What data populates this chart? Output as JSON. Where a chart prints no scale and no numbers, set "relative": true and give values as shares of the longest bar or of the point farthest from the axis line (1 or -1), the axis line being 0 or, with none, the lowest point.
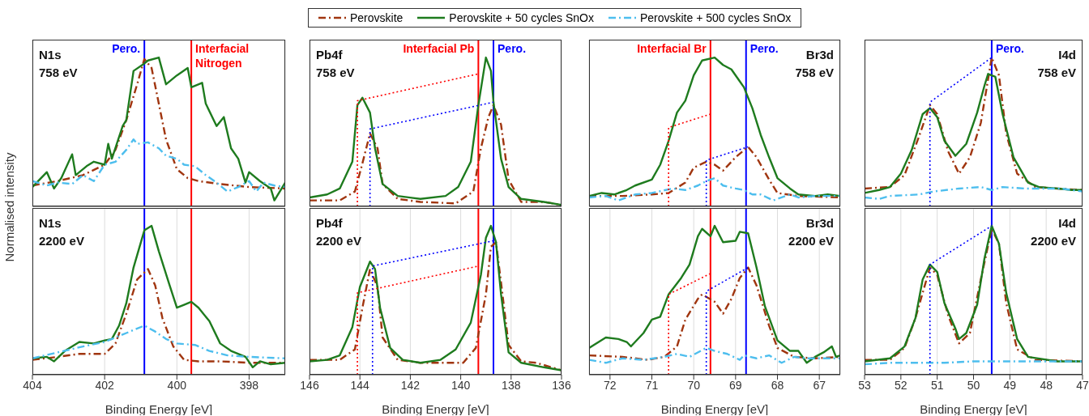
{
  "chart_data": [
    {
      "type": "line",
      "title": "N1s",
      "subtitle": "758 eV",
      "ylabel": "Normalised intensity",
      "relative": true,
      "grid": "x",
      "legend": "top",
      "tick_labels": false,
      "xlim": [
        404,
        397
      ],
      "xticks": [
        404,
        402,
        400,
        398
      ],
      "ref_lines": [
        {
          "axis": "x",
          "value": 400.9,
          "label": "Pero.",
          "color": "#0000ff"
        },
        {
          "axis": "x",
          "value": 399.6,
          "label": "Interfacial Nitrogen",
          "color": "#ff0000"
        }
      ],
      "series": [
        {
          "name": "Perovskite",
          "color": "#a0350f",
          "line_style": "dashed",
          "x": [
            404.0,
            403.3,
            402.6,
            402.0,
            401.7,
            401.4,
            401.1,
            400.9,
            400.7,
            400.5,
            400.3,
            400.0,
            399.7,
            399.4,
            398.8,
            398.0,
            397.0
          ],
          "values": [
            0.14,
            0.17,
            0.21,
            0.28,
            0.38,
            0.58,
            0.82,
            0.99,
            0.93,
            0.69,
            0.45,
            0.25,
            0.19,
            0.17,
            0.15,
            0.13,
            0.12
          ]
        },
        {
          "name": "Perovskite + 50 cycles SnOx",
          "color": "#1e7b1e",
          "line_style": "solid",
          "x": [
            404.0,
            403.6,
            403.4,
            403.2,
            402.9,
            402.8,
            402.5,
            402.3,
            402.0,
            401.9,
            401.8,
            401.5,
            401.4,
            401.2,
            400.9,
            400.8,
            400.5,
            400.3,
            400.0,
            399.7,
            399.6,
            399.3,
            399.2,
            398.9,
            398.7,
            398.5,
            398.3,
            398.1,
            398.0,
            397.7,
            397.4,
            397.3,
            397.0
          ],
          "values": [
            0.13,
            0.23,
            0.12,
            0.19,
            0.35,
            0.21,
            0.27,
            0.3,
            0.28,
            0.42,
            0.32,
            0.54,
            0.58,
            0.91,
            0.96,
            0.98,
            1.0,
            0.82,
            0.88,
            0.93,
            0.8,
            0.83,
            0.69,
            0.54,
            0.6,
            0.39,
            0.32,
            0.16,
            0.23,
            0.17,
            0.12,
            0.04,
            0.16
          ]
        },
        {
          "name": "Perovskite + 500 cycles SnOx",
          "color": "#4dbeee",
          "line_style": "dashed",
          "x": [
            404.0,
            403.6,
            403.3,
            402.9,
            402.6,
            402.3,
            402.0,
            401.7,
            401.4,
            401.2,
            401.1,
            400.8,
            400.5,
            400.3,
            400.0,
            399.8,
            399.5,
            399.2,
            398.9,
            398.6,
            398.3,
            398.0,
            397.8,
            397.6,
            397.3,
            397.0
          ],
          "values": [
            0.17,
            0.14,
            0.16,
            0.15,
            0.21,
            0.17,
            0.28,
            0.3,
            0.38,
            0.45,
            0.42,
            0.43,
            0.39,
            0.34,
            0.32,
            0.28,
            0.27,
            0.21,
            0.16,
            0.1,
            0.13,
            0.17,
            0.1,
            0.16,
            0.14,
            0.13
          ]
        }
      ]
    },
    {
      "type": "line",
      "title": "Pb4f",
      "subtitle": "758 eV",
      "relative": true,
      "grid": "x",
      "tick_labels": false,
      "xlim": [
        146,
        136
      ],
      "xticks": [
        146,
        144,
        142,
        140,
        138,
        136
      ],
      "ref_lines": [
        {
          "axis": "x",
          "value": 139.3,
          "label": "Interfacial Pb",
          "color": "#ff0000"
        },
        {
          "axis": "x",
          "value": 138.7,
          "label": "Pero.",
          "color": "#0000ff"
        }
      ],
      "series": [
        {
          "color": "#a0350f",
          "line_style": "dashed",
          "x": [
            146.0,
            144.8,
            144.2,
            143.9,
            143.6,
            143.3,
            143.1,
            142.5,
            141.6,
            140.2,
            139.5,
            139.2,
            138.9,
            138.7,
            138.4,
            138.1,
            137.6,
            136.7,
            136.0
          ],
          "values": [
            0.04,
            0.04,
            0.1,
            0.29,
            0.49,
            0.39,
            0.15,
            0.05,
            0.03,
            0.02,
            0.1,
            0.39,
            0.6,
            0.68,
            0.55,
            0.18,
            0.03,
            0.03,
            0.01
          ]
        },
        {
          "color": "#1e7b1e",
          "line_style": "solid",
          "x": [
            146.0,
            145.3,
            144.8,
            144.3,
            144.1,
            143.9,
            143.6,
            143.4,
            143.1,
            142.5,
            141.6,
            140.6,
            140.1,
            139.6,
            139.3,
            139.0,
            138.8,
            138.7,
            138.4,
            138.1,
            137.6,
            136.7,
            136.0
          ],
          "values": [
            0.06,
            0.08,
            0.12,
            0.3,
            0.68,
            0.73,
            0.63,
            0.39,
            0.15,
            0.07,
            0.05,
            0.07,
            0.13,
            0.3,
            0.68,
            1.0,
            0.91,
            0.7,
            0.32,
            0.13,
            0.05,
            0.03,
            0.01
          ]
        },
        {
          "color": "#ff0000",
          "line_style": "dotted",
          "x": [
            144.1,
            144.1,
            139.3
          ],
          "values": [
            0,
            0.71,
            0.89
          ]
        },
        {
          "color": "#0000ff",
          "line_style": "dotted",
          "x": [
            143.6,
            143.6,
            138.7
          ],
          "values": [
            0,
            0.52,
            0.7
          ]
        }
      ]
    },
    {
      "type": "line",
      "title": "Br3d",
      "subtitle": "758 eV",
      "relative": true,
      "grid": "x",
      "tick_labels": false,
      "xlim": [
        72.5,
        66.5
      ],
      "xticks": [
        72,
        71,
        70,
        69,
        68,
        67
      ],
      "ref_lines": [
        {
          "axis": "x",
          "value": 69.6,
          "label": "Interfacial Br",
          "color": "#ff0000"
        },
        {
          "axis": "x",
          "value": 68.75,
          "label": "Pero.",
          "color": "#0000ff"
        }
      ],
      "series": [
        {
          "color": "#a0350f",
          "line_style": "dashed",
          "x": [
            72.5,
            71.7,
            71.0,
            70.6,
            70.2,
            70.0,
            69.7,
            69.5,
            69.3,
            69.0,
            68.7,
            68.5,
            68.2,
            68.0,
            67.5,
            66.5
          ],
          "values": [
            0.07,
            0.07,
            0.08,
            0.09,
            0.16,
            0.26,
            0.3,
            0.28,
            0.24,
            0.33,
            0.4,
            0.33,
            0.18,
            0.09,
            0.07,
            0.06
          ]
        },
        {
          "color": "#1e7b1e",
          "line_style": "solid",
          "x": [
            72.5,
            72.2,
            71.9,
            71.6,
            71.4,
            71.0,
            70.8,
            70.6,
            70.4,
            70.2,
            70.0,
            69.8,
            69.5,
            69.3,
            69.1,
            68.9,
            68.8,
            68.6,
            68.4,
            68.2,
            68.0,
            67.7,
            67.5,
            67.1,
            66.8,
            66.5
          ],
          "values": [
            0.07,
            0.09,
            0.08,
            0.11,
            0.14,
            0.18,
            0.28,
            0.44,
            0.63,
            0.71,
            0.88,
            0.98,
            1.0,
            0.95,
            0.92,
            0.84,
            0.8,
            0.66,
            0.48,
            0.33,
            0.19,
            0.12,
            0.08,
            0.07,
            0.08,
            0.07
          ]
        },
        {
          "color": "#4dbeee",
          "line_style": "dashed",
          "x": [
            72.5,
            72.1,
            71.8,
            71.4,
            71.0,
            70.5,
            70.2,
            69.9,
            69.7,
            69.5,
            69.3,
            69.0,
            68.8,
            68.6,
            68.4,
            68.1,
            67.7,
            67.5,
            67.1,
            66.5
          ],
          "values": [
            0.06,
            0.07,
            0.04,
            0.08,
            0.09,
            0.12,
            0.11,
            0.14,
            0.17,
            0.19,
            0.14,
            0.12,
            0.11,
            0.08,
            0.08,
            0.04,
            0.08,
            0.06,
            0.07,
            0.07
          ]
        },
        {
          "color": "#ff0000",
          "line_style": "dotted",
          "x": [
            70.6,
            70.6,
            69.6
          ],
          "values": [
            0,
            0.53,
            0.62
          ]
        },
        {
          "color": "#0000ff",
          "line_style": "dotted",
          "x": [
            69.7,
            69.7,
            68.7
          ],
          "values": [
            0,
            0.31,
            0.4
          ]
        }
      ]
    },
    {
      "type": "line",
      "title": "I4d",
      "subtitle": "758 eV",
      "relative": true,
      "grid": "x",
      "tick_labels": false,
      "xlim": [
        53,
        47
      ],
      "xticks": [
        53,
        52,
        51,
        50,
        49,
        48,
        47
      ],
      "ref_lines": [
        {
          "axis": "x",
          "value": 49.5,
          "label": "Pero.",
          "color": "#0000ff"
        }
      ],
      "series": [
        {
          "color": "#a0350f",
          "line_style": "dashed",
          "x": [
            53.0,
            52.3,
            51.9,
            51.5,
            51.2,
            51.0,
            50.7,
            50.4,
            50.1,
            49.8,
            49.5,
            49.3,
            49.1,
            48.8,
            48.3,
            47.7,
            47.0
          ],
          "values": [
            0.12,
            0.13,
            0.21,
            0.47,
            0.68,
            0.62,
            0.37,
            0.22,
            0.33,
            0.56,
            1.0,
            0.88,
            0.49,
            0.22,
            0.13,
            0.12,
            0.11
          ]
        },
        {
          "color": "#1e7b1e",
          "line_style": "solid",
          "x": [
            53.0,
            52.6,
            52.3,
            52.0,
            51.7,
            51.4,
            51.2,
            51.0,
            50.8,
            50.5,
            50.2,
            49.9,
            49.7,
            49.6,
            49.4,
            49.2,
            48.9,
            48.5,
            48.2,
            47.7,
            47.3,
            47.0
          ],
          "values": [
            0.09,
            0.11,
            0.13,
            0.22,
            0.38,
            0.62,
            0.66,
            0.6,
            0.44,
            0.34,
            0.42,
            0.63,
            0.81,
            0.89,
            0.87,
            0.62,
            0.33,
            0.16,
            0.13,
            0.12,
            0.11,
            0.11
          ]
        },
        {
          "color": "#4dbeee",
          "line_style": "dashed",
          "x": [
            53.0,
            52.6,
            52.3,
            51.5,
            51.1,
            50.4,
            49.8,
            49.5,
            49.2,
            48.6,
            48.0,
            47.6,
            47.0
          ],
          "values": [
            0.06,
            0.05,
            0.07,
            0.08,
            0.1,
            0.12,
            0.13,
            0.11,
            0.13,
            0.12,
            0.12,
            0.12,
            0.1
          ]
        },
        {
          "color": "#0000ff",
          "line_style": "dotted",
          "x": [
            51.2,
            51.2,
            49.5
          ],
          "values": [
            0,
            0.7,
            1.0
          ]
        }
      ]
    },
    {
      "type": "line",
      "title": "N1s",
      "subtitle": "2200 eV",
      "xlabel": "Binding Energy [eV]",
      "relative": true,
      "grid": "x",
      "tick_labels": "x",
      "xlim": [
        404,
        397
      ],
      "xticks": [
        404,
        402,
        400,
        398
      ],
      "ref_lines": [
        {
          "axis": "x",
          "value": 400.9,
          "color": "#0000ff"
        },
        {
          "axis": "x",
          "value": 399.6,
          "color": "#ff0000"
        }
      ],
      "series": [
        {
          "color": "#a0350f",
          "line_style": "dashed",
          "x": [
            404.0,
            403.3,
            402.7,
            402.0,
            401.7,
            401.4,
            401.1,
            400.8,
            400.6,
            400.4,
            400.1,
            399.8,
            399.4,
            398.8,
            398.0,
            397.0
          ],
          "values": [
            0.1,
            0.12,
            0.14,
            0.14,
            0.21,
            0.41,
            0.64,
            0.71,
            0.6,
            0.38,
            0.19,
            0.1,
            0.09,
            0.09,
            0.08,
            0.08
          ]
        },
        {
          "color": "#1e7b1e",
          "line_style": "solid",
          "x": [
            404.0,
            403.6,
            403.4,
            403.1,
            402.7,
            402.3,
            402.0,
            401.8,
            401.6,
            401.4,
            401.2,
            400.9,
            400.7,
            400.5,
            400.2,
            400.0,
            399.8,
            399.6,
            399.4,
            399.1,
            398.8,
            398.5,
            398.1,
            397.9,
            397.7,
            397.4,
            397.0
          ],
          "values": [
            0.11,
            0.12,
            0.09,
            0.16,
            0.22,
            0.21,
            0.23,
            0.24,
            0.33,
            0.48,
            0.72,
            0.97,
            1.0,
            0.83,
            0.6,
            0.45,
            0.47,
            0.49,
            0.45,
            0.36,
            0.21,
            0.16,
            0.12,
            0.05,
            0.09,
            0.07,
            0.08
          ]
        },
        {
          "color": "#4dbeee",
          "line_style": "dashed",
          "x": [
            404.0,
            403.3,
            402.6,
            402.0,
            401.4,
            400.9,
            400.6,
            400.3,
            400.0,
            399.5,
            399.1,
            398.6,
            398.0,
            397.0
          ],
          "values": [
            0.11,
            0.15,
            0.19,
            0.22,
            0.28,
            0.33,
            0.29,
            0.24,
            0.21,
            0.2,
            0.16,
            0.13,
            0.12,
            0.11
          ]
        }
      ]
    },
    {
      "type": "line",
      "title": "Pb4f",
      "subtitle": "2200 eV",
      "xlabel": "Binding Energy [eV]",
      "relative": true,
      "grid": "x",
      "tick_labels": "x",
      "xlim": [
        146,
        136
      ],
      "xticks": [
        146,
        144,
        142,
        140,
        138,
        136
      ],
      "ref_lines": [
        {
          "axis": "x",
          "value": 139.3,
          "color": "#ff0000"
        },
        {
          "axis": "x",
          "value": 138.7,
          "color": "#0000ff"
        }
      ],
      "series": [
        {
          "color": "#a0350f",
          "line_style": "dashed",
          "x": [
            146.0,
            144.8,
            144.2,
            143.9,
            143.6,
            143.3,
            143.1,
            142.5,
            141.6,
            139.9,
            139.4,
            139.0,
            138.8,
            138.6,
            138.4,
            138.1,
            137.6,
            137.0,
            136.0
          ],
          "values": [
            0.1,
            0.1,
            0.17,
            0.45,
            0.71,
            0.59,
            0.25,
            0.1,
            0.08,
            0.08,
            0.18,
            0.54,
            0.86,
            0.89,
            0.62,
            0.2,
            0.09,
            0.08,
            0.03
          ]
        },
        {
          "color": "#1e7b1e",
          "line_style": "solid",
          "x": [
            146.0,
            145.3,
            144.8,
            144.3,
            144.0,
            143.6,
            143.4,
            143.2,
            142.8,
            142.3,
            141.6,
            140.8,
            140.2,
            139.6,
            139.2,
            139.0,
            138.8,
            138.6,
            138.4,
            138.1,
            137.6,
            136.7,
            136.0
          ],
          "values": [
            0.09,
            0.1,
            0.13,
            0.32,
            0.59,
            0.76,
            0.71,
            0.45,
            0.18,
            0.1,
            0.08,
            0.1,
            0.17,
            0.35,
            0.67,
            0.92,
            1.0,
            0.89,
            0.54,
            0.15,
            0.08,
            0.05,
            0.03
          ]
        },
        {
          "color": "#ff0000",
          "line_style": "dotted",
          "x": [
            144.1,
            144.1,
            139.3
          ],
          "values": [
            0,
            0.55,
            0.73
          ]
        },
        {
          "color": "#0000ff",
          "line_style": "dotted",
          "x": [
            143.5,
            143.5,
            138.7
          ],
          "values": [
            0,
            0.73,
            0.9
          ]
        }
      ]
    },
    {
      "type": "line",
      "title": "Br3d",
      "subtitle": "2200 eV",
      "xlabel": "Binding Energy [eV]",
      "relative": true,
      "grid": "x",
      "tick_labels": "x",
      "xlim": [
        72.5,
        66.5
      ],
      "xticks": [
        72,
        71,
        70,
        69,
        68,
        67
      ],
      "ref_lines": [
        {
          "axis": "x",
          "value": 69.6,
          "color": "#ff0000"
        },
        {
          "axis": "x",
          "value": 68.75,
          "color": "#0000ff"
        }
      ],
      "series": [
        {
          "color": "#a0350f",
          "line_style": "dashed",
          "x": [
            72.5,
            71.7,
            71.1,
            70.7,
            70.4,
            70.2,
            69.9,
            69.8,
            69.5,
            69.3,
            69.1,
            68.9,
            68.7,
            68.5,
            68.2,
            68.0,
            67.6,
            67.1,
            66.5
          ],
          "values": [
            0.13,
            0.12,
            0.1,
            0.12,
            0.19,
            0.37,
            0.51,
            0.54,
            0.49,
            0.41,
            0.51,
            0.65,
            0.72,
            0.6,
            0.33,
            0.18,
            0.12,
            0.11,
            0.12
          ]
        },
        {
          "color": "#1e7b1e",
          "line_style": "solid",
          "x": [
            72.5,
            72.1,
            71.8,
            71.6,
            71.5,
            71.2,
            71.0,
            70.8,
            70.6,
            70.3,
            70.1,
            69.9,
            69.8,
            69.6,
            69.5,
            69.3,
            69.0,
            68.9,
            68.7,
            68.5,
            68.3,
            68.0,
            67.7,
            67.5,
            67.3,
            67.1,
            66.9,
            66.7,
            66.6,
            66.5
          ],
          "values": [
            0.18,
            0.25,
            0.24,
            0.22,
            0.19,
            0.28,
            0.37,
            0.39,
            0.54,
            0.65,
            0.74,
            0.93,
            0.98,
            0.93,
            1.0,
            0.89,
            0.9,
            0.96,
            0.95,
            0.72,
            0.46,
            0.23,
            0.16,
            0.16,
            0.08,
            0.12,
            0.15,
            0.19,
            0.12,
            0.13
          ]
        },
        {
          "color": "#4dbeee",
          "line_style": "dashed",
          "x": [
            72.5,
            72.1,
            71.7,
            71.2,
            70.7,
            70.4,
            70.1,
            69.7,
            69.5,
            69.2,
            68.9,
            68.8,
            68.5,
            68.2,
            67.9,
            67.6,
            67.3,
            66.9,
            66.5
          ],
          "values": [
            0.1,
            0.08,
            0.11,
            0.1,
            0.12,
            0.14,
            0.12,
            0.18,
            0.16,
            0.14,
            0.1,
            0.13,
            0.11,
            0.13,
            0.08,
            0.12,
            0.11,
            0.11,
            0.11
          ]
        },
        {
          "color": "#ff0000",
          "line_style": "dotted",
          "x": [
            70.6,
            70.6,
            69.6
          ],
          "values": [
            0,
            0.54,
            0.68
          ]
        },
        {
          "color": "#0000ff",
          "line_style": "dotted",
          "x": [
            69.7,
            69.7,
            68.7
          ],
          "values": [
            0,
            0.56,
            0.72
          ]
        }
      ]
    },
    {
      "type": "line",
      "title": "I4d",
      "subtitle": "2200 eV",
      "xlabel": "Binding Energy [eV]",
      "relative": true,
      "grid": "x",
      "tick_labels": "x",
      "xlim": [
        53,
        47
      ],
      "xticks": [
        53,
        52,
        51,
        50,
        49,
        48,
        47
      ],
      "ref_lines": [
        {
          "axis": "x",
          "value": 49.5,
          "color": "#0000ff"
        }
      ],
      "series": [
        {
          "color": "#a0350f",
          "line_style": "dashed",
          "x": [
            53.0,
            52.3,
            51.9,
            51.6,
            51.2,
            51.0,
            50.7,
            50.4,
            50.1,
            49.8,
            49.5,
            49.3,
            49.1,
            48.8,
            48.3,
            47.0
          ],
          "values": [
            0.1,
            0.1,
            0.18,
            0.38,
            0.72,
            0.67,
            0.4,
            0.21,
            0.28,
            0.64,
            0.98,
            0.88,
            0.48,
            0.17,
            0.1,
            0.09
          ]
        },
        {
          "color": "#1e7b1e",
          "line_style": "solid",
          "x": [
            53.0,
            52.3,
            51.9,
            51.6,
            51.4,
            51.2,
            51.0,
            50.8,
            50.5,
            50.4,
            50.2,
            49.9,
            49.7,
            49.5,
            49.3,
            49.1,
            48.8,
            48.5,
            47.7,
            47.0
          ],
          "values": [
            0.09,
            0.11,
            0.19,
            0.38,
            0.64,
            0.74,
            0.69,
            0.48,
            0.31,
            0.24,
            0.28,
            0.47,
            0.78,
            1.0,
            0.88,
            0.55,
            0.24,
            0.12,
            0.09,
            0.09
          ]
        },
        {
          "color": "#4dbeee",
          "line_style": "dashed",
          "x": [
            53.0,
            52.3,
            51.5,
            50.8,
            50.0,
            49.6,
            49.2,
            48.5,
            47.7,
            47.0
          ],
          "values": [
            0.07,
            0.08,
            0.08,
            0.08,
            0.09,
            0.09,
            0.09,
            0.09,
            0.09,
            0.09
          ]
        },
        {
          "color": "#0000ff",
          "line_style": "dotted",
          "x": [
            51.2,
            51.2,
            49.5
          ],
          "values": [
            0,
            0.74,
            1.0
          ]
        }
      ]
    }
  ]
}
